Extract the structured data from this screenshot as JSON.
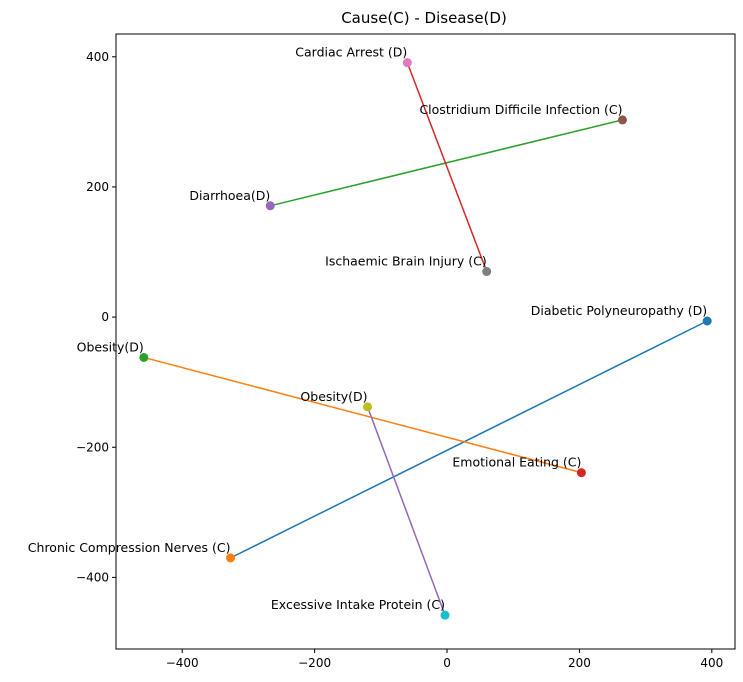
{
  "chart_data": {
    "type": "scatter",
    "title": "Cause(C) - Disease(D)",
    "xlabel": "",
    "ylabel": "",
    "xlim": [
      -500,
      435
    ],
    "ylim": [
      -510,
      435
    ],
    "xticks": [
      -400,
      -200,
      0,
      200,
      400
    ],
    "yticks": [
      -400,
      -200,
      0,
      200,
      400
    ],
    "xtick_labels": [
      "−400",
      "−200",
      "0",
      "200",
      "400"
    ],
    "ytick_labels": [
      "−400",
      "−200",
      "0",
      "200",
      "400"
    ],
    "grid": false,
    "pairs": [
      {
        "line_color": "#1f77b4",
        "points": [
          {
            "label": "Diabetic Polyneuropathy (D)",
            "x": 393,
            "y": -6,
            "color": "#1f77b4"
          },
          {
            "label": "Chronic Compression Nerves (C)",
            "x": -327,
            "y": -370,
            "color": "#ff7f0e"
          }
        ]
      },
      {
        "line_color": "#ff7f0e",
        "points": [
          {
            "label": "Obesity(D)",
            "x": -458,
            "y": -62,
            "color": "#2ca02c"
          },
          {
            "label": "Emotional Eating (C)",
            "x": 203,
            "y": -239,
            "color": "#d62728"
          }
        ]
      },
      {
        "line_color": "#2ca02c",
        "points": [
          {
            "label": "Diarrhoea(D)",
            "x": -267,
            "y": 171,
            "color": "#9467bd"
          },
          {
            "label": "Clostridium Difficile Infection (C)",
            "x": 265,
            "y": 303,
            "color": "#8c564b"
          }
        ]
      },
      {
        "line_color": "#d62728",
        "points": [
          {
            "label": "Cardiac Arrest (D)",
            "x": -60,
            "y": 391,
            "color": "#e377c2"
          },
          {
            "label": "Ischaemic Brain Injury (C)",
            "x": 60,
            "y": 70,
            "color": "#7f7f7f"
          }
        ]
      },
      {
        "line_color": "#9467bd",
        "points": [
          {
            "label": "Obesity(D)",
            "x": -120,
            "y": -138,
            "color": "#bcbd22"
          },
          {
            "label": "Excessive Intake Protein (C)",
            "x": -3,
            "y": -458,
            "color": "#17becf"
          }
        ]
      }
    ]
  }
}
